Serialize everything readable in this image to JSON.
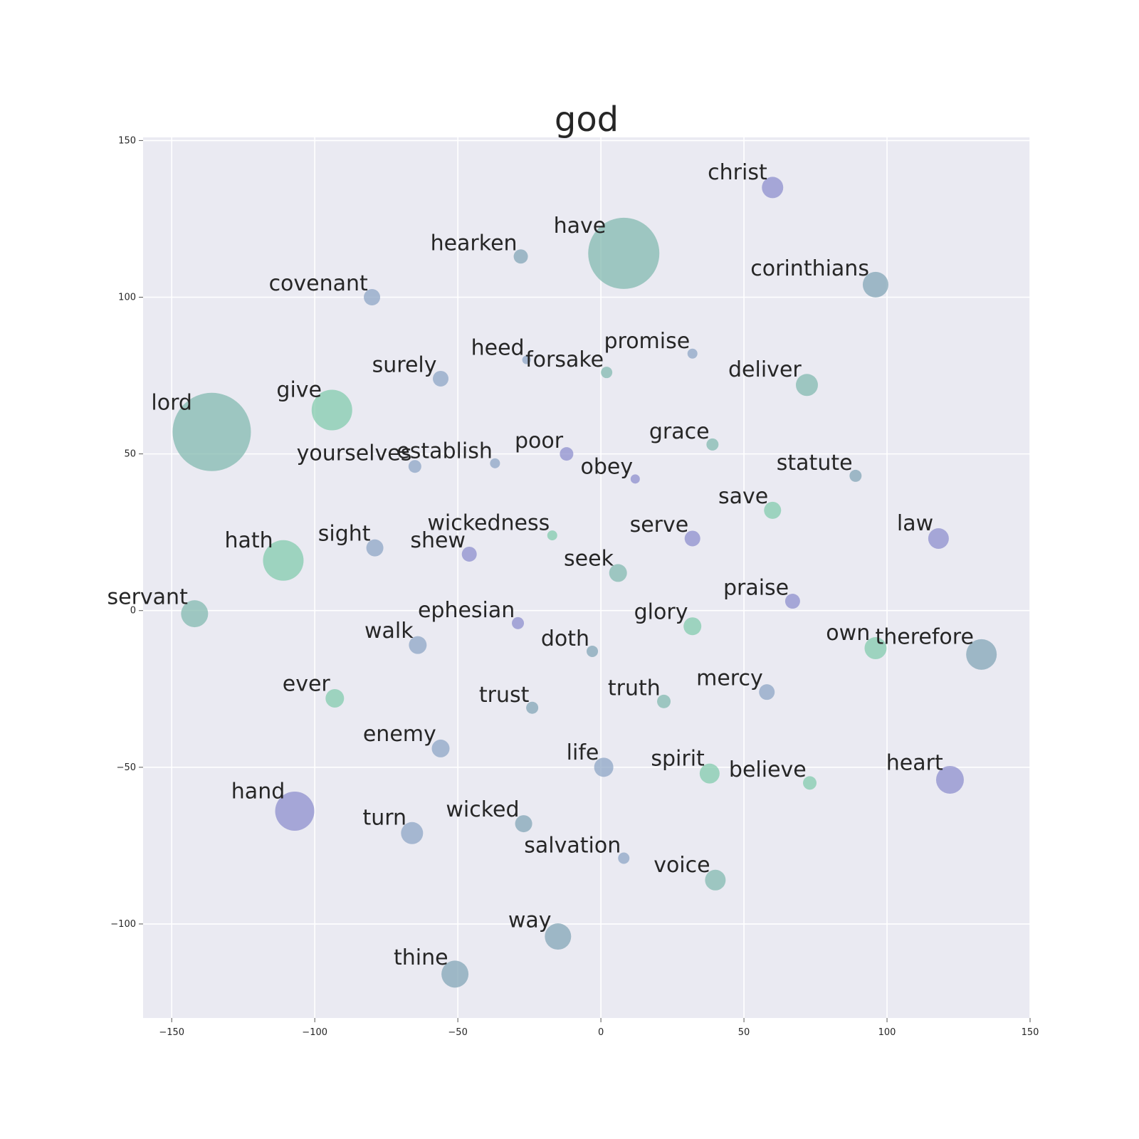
{
  "chart_data": {
    "type": "scatter",
    "title": "god",
    "xlabel": "",
    "ylabel": "",
    "xlim": [
      -160,
      150
    ],
    "ylim": [
      -130,
      151
    ],
    "grid": true,
    "xticks": [
      -150,
      -100,
      -50,
      0,
      50,
      100,
      150
    ],
    "yticks": [
      150,
      100,
      50,
      0,
      -50,
      -100
    ],
    "xtick_labels": [
      "−150",
      "−100",
      "−50",
      "0",
      "50",
      "100",
      "150"
    ],
    "ytick_labels": [
      "150",
      "100",
      "50",
      "0",
      "−50",
      "−100"
    ],
    "colors": {
      "background": "#eaeaf2",
      "teal": "#80b9ad",
      "green": "#7fcaaa",
      "blue": "#8aa3c4",
      "purple": "#8a8ccc",
      "slate": "#7fa3b4"
    },
    "points": [
      {
        "word": "christ",
        "x": 60,
        "y": 135,
        "size": 30,
        "color": "purple"
      },
      {
        "word": "hearken",
        "x": -28,
        "y": 113,
        "size": 20,
        "color": "slate"
      },
      {
        "word": "have",
        "x": 8,
        "y": 114,
        "size": 100,
        "color": "teal"
      },
      {
        "word": "corinthians",
        "x": 96,
        "y": 104,
        "size": 36,
        "color": "slate"
      },
      {
        "word": "covenant",
        "x": -80,
        "y": 100,
        "size": 23,
        "color": "blue"
      },
      {
        "word": "heed",
        "x": -26,
        "y": 80,
        "size": 12,
        "color": "blue"
      },
      {
        "word": "promise",
        "x": 32,
        "y": 82,
        "size": 14,
        "color": "blue"
      },
      {
        "word": "forsake",
        "x": 2,
        "y": 76,
        "size": 16,
        "color": "teal"
      },
      {
        "word": "surely",
        "x": -56,
        "y": 74,
        "size": 22,
        "color": "blue"
      },
      {
        "word": "deliver",
        "x": 72,
        "y": 72,
        "size": 31,
        "color": "teal"
      },
      {
        "word": "give",
        "x": -94,
        "y": 64,
        "size": 57,
        "color": "green"
      },
      {
        "word": "lord",
        "x": -136,
        "y": 57,
        "size": 110,
        "color": "teal"
      },
      {
        "word": "grace",
        "x": 39,
        "y": 53,
        "size": 17,
        "color": "teal"
      },
      {
        "word": "poor",
        "x": -12,
        "y": 50,
        "size": 19,
        "color": "purple"
      },
      {
        "word": "yourselves",
        "x": -65,
        "y": 46,
        "size": 18,
        "color": "blue"
      },
      {
        "word": "establish",
        "x": -37,
        "y": 47,
        "size": 14,
        "color": "blue"
      },
      {
        "word": "obey",
        "x": 12,
        "y": 42,
        "size": 13,
        "color": "purple"
      },
      {
        "word": "statute",
        "x": 89,
        "y": 43,
        "size": 17,
        "color": "slate"
      },
      {
        "word": "save",
        "x": 60,
        "y": 32,
        "size": 24,
        "color": "green"
      },
      {
        "word": "wickedness",
        "x": -17,
        "y": 24,
        "size": 14,
        "color": "green"
      },
      {
        "word": "serve",
        "x": 32,
        "y": 23,
        "size": 22,
        "color": "purple"
      },
      {
        "word": "law",
        "x": 118,
        "y": 23,
        "size": 29,
        "color": "purple"
      },
      {
        "word": "sight",
        "x": -79,
        "y": 20,
        "size": 24,
        "color": "blue"
      },
      {
        "word": "shew",
        "x": -46,
        "y": 18,
        "size": 21,
        "color": "purple"
      },
      {
        "word": "hath",
        "x": -111,
        "y": 16,
        "size": 57,
        "color": "green"
      },
      {
        "word": "seek",
        "x": 6,
        "y": 12,
        "size": 25,
        "color": "teal"
      },
      {
        "word": "praise",
        "x": 67,
        "y": 3,
        "size": 21,
        "color": "purple"
      },
      {
        "word": "servant",
        "x": -142,
        "y": -1,
        "size": 38,
        "color": "teal"
      },
      {
        "word": "ephesian",
        "x": -29,
        "y": -4,
        "size": 17,
        "color": "purple"
      },
      {
        "word": "glory",
        "x": 32,
        "y": -5,
        "size": 25,
        "color": "green"
      },
      {
        "word": "walk",
        "x": -64,
        "y": -11,
        "size": 25,
        "color": "blue"
      },
      {
        "word": "doth",
        "x": -3,
        "y": -13,
        "size": 16,
        "color": "slate"
      },
      {
        "word": "own",
        "x": 96,
        "y": -12,
        "size": 31,
        "color": "green"
      },
      {
        "word": "therefore",
        "x": 133,
        "y": -14,
        "size": 43,
        "color": "slate"
      },
      {
        "word": "ever",
        "x": -93,
        "y": -28,
        "size": 26,
        "color": "green"
      },
      {
        "word": "mercy",
        "x": 58,
        "y": -26,
        "size": 22,
        "color": "blue"
      },
      {
        "word": "truth",
        "x": 22,
        "y": -29,
        "size": 19,
        "color": "teal"
      },
      {
        "word": "trust",
        "x": -24,
        "y": -31,
        "size": 17,
        "color": "slate"
      },
      {
        "word": "enemy",
        "x": -56,
        "y": -44,
        "size": 25,
        "color": "blue"
      },
      {
        "word": "life",
        "x": 1,
        "y": -50,
        "size": 27,
        "color": "blue"
      },
      {
        "word": "spirit",
        "x": 38,
        "y": -52,
        "size": 28,
        "color": "green"
      },
      {
        "word": "believe",
        "x": 73,
        "y": -55,
        "size": 19,
        "color": "green"
      },
      {
        "word": "heart",
        "x": 122,
        "y": -54,
        "size": 39,
        "color": "purple"
      },
      {
        "word": "hand",
        "x": -107,
        "y": -64,
        "size": 55,
        "color": "purple"
      },
      {
        "word": "turn",
        "x": -66,
        "y": -71,
        "size": 31,
        "color": "blue"
      },
      {
        "word": "wicked",
        "x": -27,
        "y": -68,
        "size": 24,
        "color": "slate"
      },
      {
        "word": "salvation",
        "x": 8,
        "y": -79,
        "size": 16,
        "color": "blue"
      },
      {
        "word": "voice",
        "x": 40,
        "y": -86,
        "size": 29,
        "color": "teal"
      },
      {
        "word": "way",
        "x": -15,
        "y": -104,
        "size": 37,
        "color": "slate"
      },
      {
        "word": "thine",
        "x": -51,
        "y": -116,
        "size": 38,
        "color": "slate"
      }
    ]
  }
}
